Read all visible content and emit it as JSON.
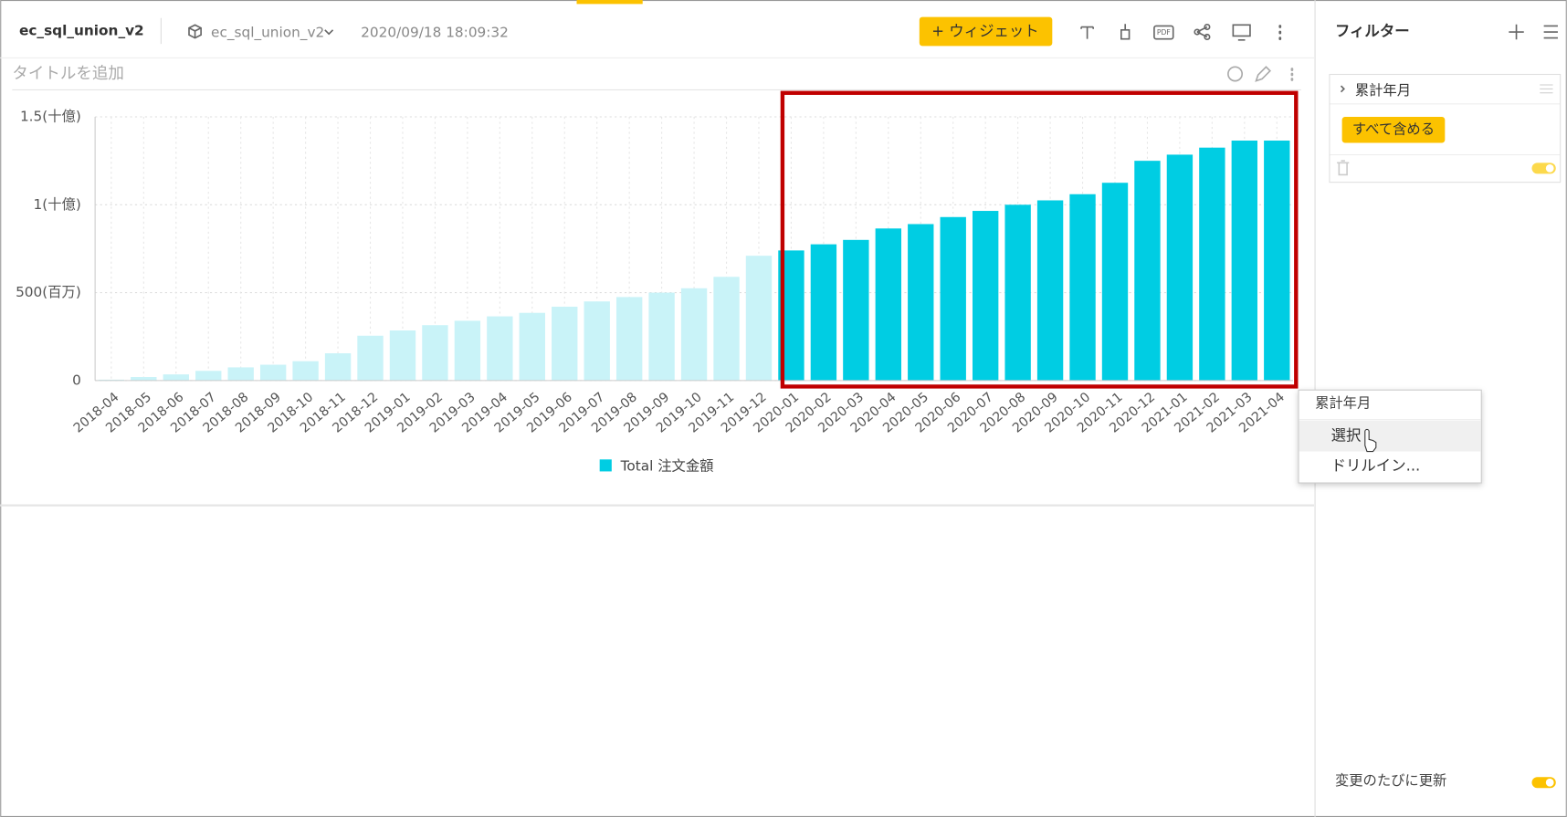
{
  "header": {
    "title": "ec_sql_union_v2",
    "dataset": "ec_sql_union_v2",
    "timestamp": "2020/09/18 18:09:32",
    "add_widget": "+ ウィジェット",
    "pdf": "PDF"
  },
  "widget": {
    "title_placeholder": "タイトルを追加"
  },
  "chart_data": {
    "type": "bar",
    "categories": [
      "2018-04",
      "2018-05",
      "2018-06",
      "2018-07",
      "2018-08",
      "2018-09",
      "2018-10",
      "2018-11",
      "2018-12",
      "2019-01",
      "2019-02",
      "2019-03",
      "2019-04",
      "2019-05",
      "2019-06",
      "2019-07",
      "2019-08",
      "2019-09",
      "2019-10",
      "2019-11",
      "2019-12",
      "2020-01",
      "2020-02",
      "2020-03",
      "2020-04",
      "2020-05",
      "2020-06",
      "2020-07",
      "2020-08",
      "2020-09",
      "2020-10",
      "2020-11",
      "2020-12",
      "2021-01",
      "2021-02",
      "2021-03",
      "2021-04"
    ],
    "series": [
      {
        "name": "Total 注文金額",
        "color": "#00cde3",
        "values": [
          5000000,
          20000000,
          35000000,
          55000000,
          75000000,
          90000000,
          110000000,
          155000000,
          255000000,
          285000000,
          315000000,
          340000000,
          365000000,
          385000000,
          420000000,
          450000000,
          475000000,
          500000000,
          525000000,
          590000000,
          710000000,
          740000000,
          775000000,
          800000000,
          865000000,
          890000000,
          930000000,
          965000000,
          1000000000,
          1025000000,
          1060000000,
          1125000000,
          1250000000,
          1285000000,
          1325000000,
          1365000000,
          1365000000
        ]
      }
    ],
    "bar_colors": [
      "#c9f3f8",
      "#c9f3f8",
      "#c9f3f8",
      "#c9f3f8",
      "#c9f3f8",
      "#c9f3f8",
      "#c9f3f8",
      "#c9f3f8",
      "#c9f3f8",
      "#c9f3f8",
      "#c9f3f8",
      "#c9f3f8",
      "#c9f3f8",
      "#c9f3f8",
      "#c9f3f8",
      "#c9f3f8",
      "#c9f3f8",
      "#c9f3f8",
      "#c9f3f8",
      "#c9f3f8",
      "#c9f3f8",
      "#00cde3",
      "#00cde3",
      "#00cde3",
      "#00cde3",
      "#00cde3",
      "#00cde3",
      "#00cde3",
      "#00cde3",
      "#00cde3",
      "#00cde3",
      "#00cde3",
      "#00cde3",
      "#00cde3",
      "#00cde3",
      "#00cde3",
      "#00cde3"
    ],
    "ylim": [
      0,
      1500000000
    ],
    "yticks": [
      0,
      {
        "value": 500000000,
        "label": "500(百万)"
      },
      {
        "value": 1000000000,
        "label": "1(十億)"
      },
      {
        "value": 1500000000,
        "label": "1.5(十億)"
      }
    ],
    "grid": true
  },
  "filter_panel": {
    "title": "フィルター",
    "filter": {
      "name": "累計年月",
      "button": "すべて含める"
    },
    "auto_update": "変更のたびに更新"
  },
  "context_menu": {
    "title": "累計年月",
    "items": [
      "選択",
      "ドリルイン..."
    ]
  }
}
